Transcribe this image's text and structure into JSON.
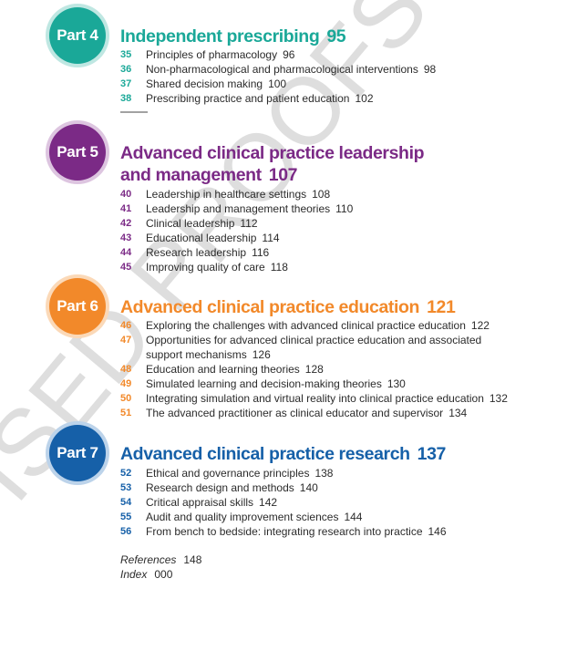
{
  "parts": [
    {
      "badge": "Part 4",
      "title": "Independent prescribing",
      "page": "95",
      "color": "#1aa898",
      "ring": "#bfe7e2",
      "chapters": [
        {
          "num": "35",
          "text": "Principles of pharmacology",
          "page": "96"
        },
        {
          "num": "36",
          "text": "Non-pharmacological and pharmacological interventions",
          "page": "98"
        },
        {
          "num": "37",
          "text": "Shared decision making",
          "page": "100"
        },
        {
          "num": "38",
          "text": "Prescribing practice and patient education",
          "page": "102"
        }
      ]
    },
    {
      "badge": "Part 5",
      "title": "Advanced clinical practice leadership and management",
      "page": "107",
      "color": "#7b2a86",
      "ring": "#ddc5e0",
      "chapters": [
        {
          "num": "40",
          "text": "Leadership in healthcare settings",
          "page": "108"
        },
        {
          "num": "41",
          "text": "Leadership and management theories",
          "page": "110"
        },
        {
          "num": "42",
          "text": "Clinical leadership",
          "page": "112"
        },
        {
          "num": "43",
          "text": "Educational leadership",
          "page": "114"
        },
        {
          "num": "44",
          "text": "Research leadership",
          "page": "116"
        },
        {
          "num": "45",
          "text": "Improving quality of care",
          "page": "118"
        }
      ]
    },
    {
      "badge": "Part 6",
      "title": "Advanced clinical practice education",
      "page": "121",
      "color": "#f2892a",
      "ring": "#fbd9b8",
      "chapters": [
        {
          "num": "46",
          "text": "Exploring the challenges with advanced clinical practice education",
          "page": "122"
        },
        {
          "num": "47",
          "text": "Opportunities for advanced clinical practice education and associated support mechanisms",
          "page": "126"
        },
        {
          "num": "48",
          "text": "Education and learning theories",
          "page": "128"
        },
        {
          "num": "49",
          "text": "Simulated learning and decision-making theories",
          "page": "130"
        },
        {
          "num": "50",
          "text": "Integrating simulation and virtual reality into clinical practice education",
          "page": "132"
        },
        {
          "num": "51",
          "text": "The advanced practitioner as clinical educator and supervisor",
          "page": "134"
        }
      ]
    },
    {
      "badge": "Part 7",
      "title": "Advanced clinical practice research",
      "page": "137",
      "color": "#1660a8",
      "ring": "#bcd3ea",
      "chapters": [
        {
          "num": "52",
          "text": "Ethical and governance principles",
          "page": "138"
        },
        {
          "num": "53",
          "text": "Research design and methods",
          "page": "140"
        },
        {
          "num": "54",
          "text": "Critical appraisal skills",
          "page": "142"
        },
        {
          "num": "55",
          "text": "Audit and quality improvement sciences",
          "page": "144"
        },
        {
          "num": "56",
          "text": "From bench to bedside: integrating research into practice",
          "page": "146"
        }
      ]
    }
  ],
  "end_matter": [
    {
      "label": "References",
      "page": "148"
    },
    {
      "label": "Index",
      "page": "000"
    }
  ],
  "watermark": "REVISED PROOFS"
}
